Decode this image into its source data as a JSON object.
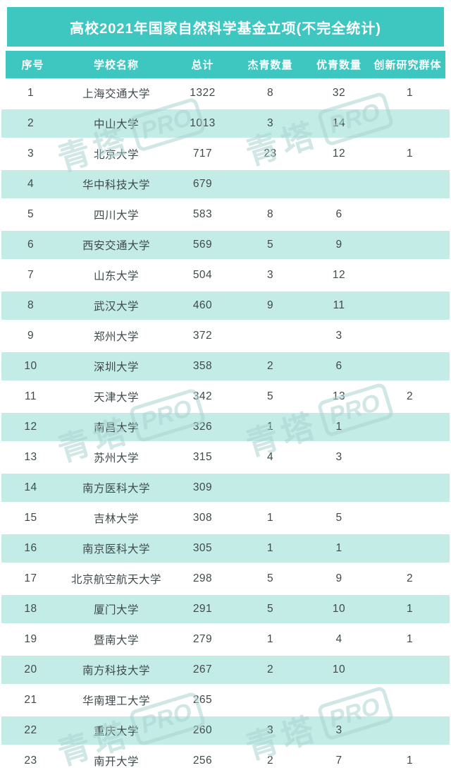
{
  "title": "高校2021年国家自然科学基金立项(不完全统计)",
  "watermark": {
    "text": "青塔",
    "badge": "PRO"
  },
  "colors": {
    "teal": "#3EC7C1",
    "teal_light": "#C3ECE7",
    "title_text": "#FFFFFF",
    "body_text": "#3E4A4B"
  },
  "chart_data": {
    "type": "table",
    "title": "高校2021年国家自然科学基金立项(不完全统计)",
    "columns": [
      "序号",
      "学校名称",
      "总计",
      "杰青数量",
      "优青数量",
      "创新研究群体"
    ],
    "rows": [
      [
        "1",
        "上海交通大学",
        "1322",
        "8",
        "32",
        "1"
      ],
      [
        "2",
        "中山大学",
        "1013",
        "3",
        "14",
        ""
      ],
      [
        "3",
        "北京大学",
        "717",
        "23",
        "12",
        "1"
      ],
      [
        "4",
        "华中科技大学",
        "679",
        "",
        "",
        ""
      ],
      [
        "5",
        "四川大学",
        "583",
        "8",
        "6",
        ""
      ],
      [
        "6",
        "西安交通大学",
        "569",
        "5",
        "9",
        ""
      ],
      [
        "7",
        "山东大学",
        "504",
        "3",
        "12",
        ""
      ],
      [
        "8",
        "武汉大学",
        "460",
        "9",
        "11",
        ""
      ],
      [
        "9",
        "郑州大学",
        "372",
        "",
        "3",
        ""
      ],
      [
        "10",
        "深圳大学",
        "358",
        "2",
        "6",
        ""
      ],
      [
        "11",
        "天津大学",
        "342",
        "5",
        "13",
        "2"
      ],
      [
        "12",
        "南昌大学",
        "326",
        "1",
        "1",
        ""
      ],
      [
        "13",
        "苏州大学",
        "315",
        "4",
        "3",
        ""
      ],
      [
        "14",
        "南方医科大学",
        "309",
        "",
        "",
        ""
      ],
      [
        "15",
        "吉林大学",
        "308",
        "1",
        "5",
        ""
      ],
      [
        "16",
        "南京医科大学",
        "305",
        "1",
        "1",
        ""
      ],
      [
        "17",
        "北京航空航天大学",
        "298",
        "5",
        "9",
        "2"
      ],
      [
        "18",
        "厦门大学",
        "291",
        "5",
        "10",
        "1"
      ],
      [
        "19",
        "暨南大学",
        "279",
        "1",
        "4",
        "1"
      ],
      [
        "20",
        "南方科技大学",
        "267",
        "2",
        "10",
        ""
      ],
      [
        "21",
        "华南理工大学",
        "265",
        "",
        "",
        ""
      ],
      [
        "22",
        "重庆大学",
        "260",
        "3",
        "3",
        ""
      ],
      [
        "23",
        "南开大学",
        "256",
        "2",
        "7",
        "1"
      ]
    ]
  }
}
